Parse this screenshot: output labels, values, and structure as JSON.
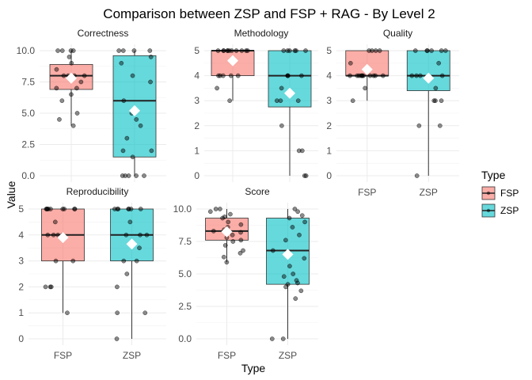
{
  "chart_data": {
    "type": "box",
    "title": "Comparison between ZSP and FSP + RAG - By Level 2",
    "xlabel": "Type",
    "ylabel": "Value",
    "categories": [
      "FSP",
      "ZSP"
    ],
    "colors": {
      "FSP": "#F8766D",
      "ZSP": "#00BFC4"
    },
    "legend": {
      "title": "Type",
      "position": "right",
      "entries": [
        "FSP",
        "ZSP"
      ]
    },
    "grid": true,
    "panels": [
      {
        "name": "Correctness",
        "ylim": [
          0,
          10
        ],
        "yticks": [
          0,
          2.5,
          5,
          7.5,
          10
        ],
        "ytick_labels": [
          "0.0",
          "2.5",
          "5.0",
          "7.5",
          "10.0"
        ],
        "series": [
          {
            "name": "FSP",
            "min": 4,
            "q1": 6.9,
            "median": 8,
            "q3": 8.9,
            "max": 10,
            "mean": 7.8,
            "points": [
              10,
              10,
              10,
              10,
              9.5,
              9,
              8.5,
              8,
              8,
              8,
              8,
              7.5,
              7,
              7,
              6.5,
              6,
              5,
              4.5,
              4
            ]
          },
          {
            "name": "ZSP",
            "min": 0,
            "q1": 1.5,
            "median": 6,
            "q3": 9.6,
            "max": 10,
            "mean": 5.2,
            "points": [
              10,
              10,
              10,
              10,
              9.5,
              9,
              8,
              7.5,
              6,
              5,
              4.5,
              4,
              3,
              2,
              2,
              1.5,
              0,
              0,
              0,
              0,
              0
            ]
          }
        ]
      },
      {
        "name": "Methodology",
        "ylim": [
          0,
          5
        ],
        "yticks": [
          0,
          1,
          2,
          3,
          4,
          5
        ],
        "ytick_labels": [
          "0",
          "1",
          "2",
          "3",
          "4",
          "5"
        ],
        "series": [
          {
            "name": "FSP",
            "min": 3,
            "q1": 4,
            "median": 5,
            "q3": 5,
            "max": 5,
            "mean": 4.6,
            "points": [
              5,
              5,
              5,
              5,
              5,
              5,
              5,
              5,
              5,
              5,
              5,
              4,
              4,
              4,
              4,
              4,
              3.5,
              3
            ]
          },
          {
            "name": "ZSP",
            "min": 0,
            "q1": 2.75,
            "median": 4,
            "q3": 5,
            "max": 5,
            "mean": 3.3,
            "points": [
              5,
              5,
              5,
              5,
              5,
              5,
              4,
              4,
              4,
              4,
              3.5,
              3,
              3,
              3,
              2,
              1,
              1,
              0,
              0
            ]
          }
        ]
      },
      {
        "name": "Quality",
        "ylim": [
          0,
          5
        ],
        "yticks": [
          0,
          1,
          2,
          3,
          4,
          5
        ],
        "ytick_labels": [
          "0",
          "1",
          "2",
          "3",
          "4",
          "5"
        ],
        "series": [
          {
            "name": "FSP",
            "min": 3,
            "q1": 4,
            "median": 4,
            "q3": 5,
            "max": 5,
            "mean": 4.25,
            "points": [
              5,
              5,
              5,
              5,
              4.5,
              4,
              4,
              4,
              4,
              4,
              4,
              4,
              4,
              4,
              4,
              4,
              3.5,
              3
            ]
          },
          {
            "name": "ZSP",
            "min": 0,
            "q1": 3.4,
            "median": 4,
            "q3": 5,
            "max": 5,
            "mean": 3.9,
            "points": [
              5,
              5,
              5,
              5,
              5,
              5,
              4.5,
              4,
              4,
              4,
              4,
              3.5,
              3,
              3,
              3,
              2,
              2,
              0
            ]
          }
        ]
      },
      {
        "name": "Reproducibility",
        "ylim": [
          0,
          5
        ],
        "yticks": [
          0,
          1,
          2,
          3,
          4,
          5
        ],
        "ytick_labels": [
          "0",
          "1",
          "2",
          "3",
          "4",
          "5"
        ],
        "series": [
          {
            "name": "FSP",
            "min": 1,
            "q1": 3,
            "median": 4,
            "q3": 5,
            "max": 5,
            "mean": 3.9,
            "points": [
              5,
              5,
              5,
              5,
              5,
              5,
              5,
              5,
              5,
              4.5,
              4,
              4,
              4,
              4,
              3,
              3,
              2,
              2,
              2,
              1
            ]
          },
          {
            "name": "ZSP",
            "min": 0,
            "q1": 3,
            "median": 4,
            "q3": 5,
            "max": 5,
            "mean": 3.65,
            "points": [
              5,
              5,
              5,
              5,
              5,
              5,
              5,
              4.5,
              4,
              4,
              4,
              3.5,
              3,
              3,
              2.5,
              2,
              1,
              1,
              0
            ]
          }
        ]
      },
      {
        "name": "Score",
        "ylim": [
          0,
          10
        ],
        "yticks": [
          0,
          2.5,
          5,
          7.5,
          10
        ],
        "ytick_labels": [
          "0.0",
          "2.5",
          "5.0",
          "7.5",
          "10.0"
        ],
        "series": [
          {
            "name": "FSP",
            "min": 5.9,
            "q1": 7.6,
            "median": 8.3,
            "q3": 9.3,
            "max": 10,
            "mean": 8.25,
            "points": [
              10,
              10,
              9.8,
              9.6,
              9.4,
              9.3,
              9,
              8.8,
              8.6,
              8.4,
              8.3,
              8.2,
              8,
              7.8,
              7.6,
              7.5,
              7.2,
              6.8,
              6.6,
              6.3,
              5.9
            ]
          },
          {
            "name": "ZSP",
            "min": 0,
            "q1": 4.2,
            "median": 6.8,
            "q3": 9.3,
            "max": 10,
            "mean": 6.5,
            "points": [
              10,
              9.8,
              9.5,
              9.3,
              9,
              8.6,
              8,
              7.6,
              6.8,
              6.2,
              5.6,
              5,
              4.8,
              4.5,
              4.3,
              4.2,
              4,
              3.7,
              3.1,
              0,
              0
            ]
          }
        ]
      }
    ]
  }
}
